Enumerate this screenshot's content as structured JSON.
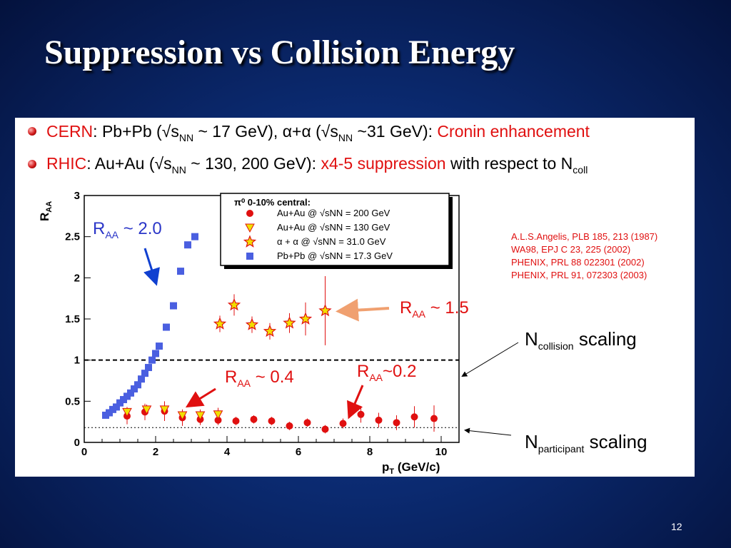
{
  "slide": {
    "title": "Suppression vs Collision Energy",
    "page_number": "12"
  },
  "bullets": [
    {
      "lead": "CERN",
      "text1": ": Pb+Pb (√s",
      "sub1": "NN",
      "text2": " ~ 17 GeV), α+α (√s",
      "sub2": "NN",
      "text3": " ~31 GeV): ",
      "highlight": "Cronin enhancement"
    },
    {
      "lead": "RHIC",
      "text1": ": Au+Au (√s",
      "sub1": "NN",
      "text2": " ~ 130, 200 GeV): ",
      "highlight": "x4-5 suppression",
      "text3": " with respect to N",
      "sub2": "coll"
    }
  ],
  "references": [
    "A.L.S.Angelis, PLB 185, 213 (1987)",
    "WA98, EPJ C 23, 225 (2002)",
    "PHENIX, PRL 88 022301 (2002)",
    "PHENIX, PRL 91, 072303  (2003)"
  ],
  "annotations": {
    "raa_main": "R",
    "raa_sub": "AA",
    "val_20": "~  2.0",
    "val_15": "~  1.5",
    "val_04": "~  0.4",
    "val_02": "~0.2",
    "ncoll_main": "N",
    "ncoll_sub": "collision",
    "ncoll_tail": " scaling",
    "npart_main": "N",
    "npart_sub": "participant",
    "npart_tail": " scaling"
  },
  "colors": {
    "red": "#e01010",
    "blue": "#3030c8",
    "yellow": "#f0e000",
    "square": "#4a5fe0",
    "arrow_orange": "#f0a070"
  },
  "chart_data": {
    "type": "scatter",
    "xlabel": "p",
    "xlabel_sub": "T",
    "xlabel_unit": " (GeV/c)",
    "ylabel": "R",
    "ylabel_sub": "AA",
    "xlim": [
      0,
      10.5
    ],
    "ylim": [
      0,
      3
    ],
    "xticks": [
      0,
      2,
      4,
      6,
      8,
      10
    ],
    "yticks": [
      0,
      0.5,
      1,
      1.5,
      2,
      2.5,
      3
    ],
    "reference_lines": [
      {
        "y": 1.0,
        "style": "dashed"
      },
      {
        "y": 0.18,
        "style": "dotted"
      }
    ],
    "legend": {
      "header": "π⁰ 0-10% central:",
      "entries": [
        {
          "label": "Au+Au @ √sNN = 200 GeV",
          "marker": "circle"
        },
        {
          "label": "Au+Au @ √sNN = 130 GeV",
          "marker": "triangle"
        },
        {
          "label": "α + α  @  √sNN = 31.0 GeV",
          "marker": "star"
        },
        {
          "label": "Pb+Pb @ √sNN = 17.3 GeV",
          "marker": "square"
        }
      ]
    },
    "series": [
      {
        "name": "Au+Au @ √sNN = 200 GeV",
        "marker": "circle",
        "points": [
          [
            1.2,
            0.32,
            0.1
          ],
          [
            1.7,
            0.37,
            0.1
          ],
          [
            2.25,
            0.38,
            0.12
          ],
          [
            2.75,
            0.3,
            0.1
          ],
          [
            3.25,
            0.28,
            0.07
          ],
          [
            3.75,
            0.27,
            0.06
          ],
          [
            4.25,
            0.26,
            0.05
          ],
          [
            4.75,
            0.28,
            0.05
          ],
          [
            5.25,
            0.26,
            0.05
          ],
          [
            5.75,
            0.2,
            0.05
          ],
          [
            6.25,
            0.24,
            0.05
          ],
          [
            6.75,
            0.16,
            0.05
          ],
          [
            7.25,
            0.23,
            0.06
          ],
          [
            7.75,
            0.34,
            0.1
          ],
          [
            8.25,
            0.27,
            0.09
          ],
          [
            8.75,
            0.24,
            0.09
          ],
          [
            9.25,
            0.31,
            0.13
          ],
          [
            9.8,
            0.29,
            0.16
          ]
        ]
      },
      {
        "name": "Au+Au @ √sNN = 130 GeV",
        "marker": "triangle",
        "points": [
          [
            1.2,
            0.37,
            0.06
          ],
          [
            1.75,
            0.4,
            0.06
          ],
          [
            2.25,
            0.4,
            0.07
          ],
          [
            2.75,
            0.33,
            0.07
          ],
          [
            3.25,
            0.33,
            0.07
          ],
          [
            3.75,
            0.34,
            0.08
          ]
        ]
      },
      {
        "name": "α + α  @  √sNN = 31.0 GeV",
        "marker": "star",
        "points": [
          [
            3.8,
            1.44,
            0.1
          ],
          [
            4.2,
            1.67,
            0.13
          ],
          [
            4.7,
            1.43,
            0.1
          ],
          [
            5.2,
            1.35,
            0.1
          ],
          [
            5.75,
            1.45,
            0.12
          ],
          [
            6.2,
            1.5,
            0.2
          ],
          [
            6.75,
            1.6,
            0.42
          ]
        ]
      },
      {
        "name": "Pb+Pb @ √sNN = 17.3 GeV",
        "marker": "square",
        "points": [
          [
            0.6,
            0.33
          ],
          [
            0.7,
            0.36
          ],
          [
            0.8,
            0.4
          ],
          [
            0.9,
            0.43
          ],
          [
            1.0,
            0.48
          ],
          [
            1.1,
            0.52
          ],
          [
            1.2,
            0.56
          ],
          [
            1.3,
            0.6
          ],
          [
            1.4,
            0.65
          ],
          [
            1.5,
            0.7
          ],
          [
            1.6,
            0.77
          ],
          [
            1.7,
            0.84
          ],
          [
            1.8,
            0.91
          ],
          [
            1.9,
            1.0
          ],
          [
            2.0,
            1.08
          ],
          [
            2.1,
            1.17
          ],
          [
            2.3,
            1.4
          ],
          [
            2.5,
            1.66
          ],
          [
            2.7,
            2.08
          ],
          [
            2.9,
            2.4
          ],
          [
            3.1,
            2.5
          ]
        ]
      }
    ]
  }
}
